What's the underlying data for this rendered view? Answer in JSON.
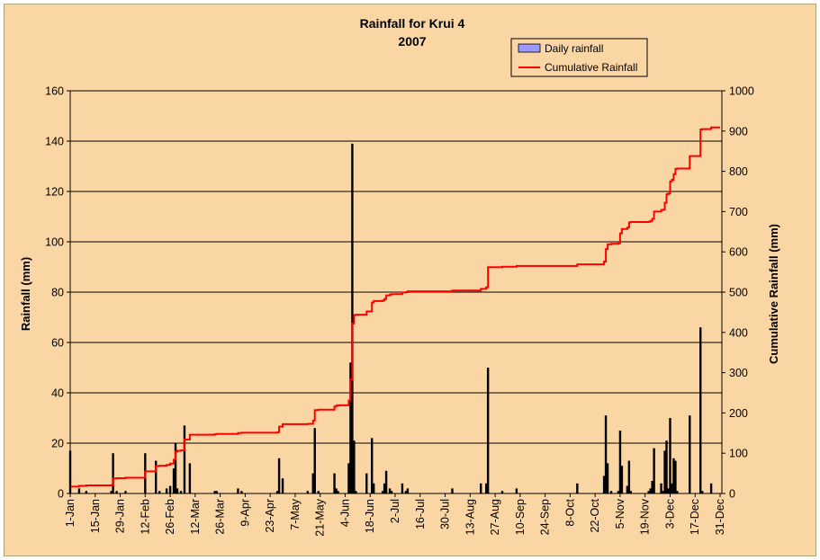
{
  "chart_data": {
    "type": "bar",
    "title": "Rainfall for Krui 4",
    "subtitle": "2007",
    "ylabel": "Rainfall (mm)",
    "y2label": "Cumulative Rainfall (mm)",
    "ylim": [
      0,
      160
    ],
    "y2lim": [
      0,
      1000
    ],
    "yticks": [
      0,
      20,
      40,
      60,
      80,
      100,
      120,
      140,
      160
    ],
    "y2ticks": [
      0,
      100,
      200,
      300,
      400,
      500,
      600,
      700,
      800,
      900,
      1000
    ],
    "xlim_days": [
      0,
      365
    ],
    "xticks": [
      "1-Jan",
      "15-Jan",
      "29-Jan",
      "12-Feb",
      "26-Feb",
      "12-Mar",
      "26-Mar",
      "9-Apr",
      "23-Apr",
      "7-May",
      "21-May",
      "4-Jun",
      "18-Jun",
      "2-Jul",
      "16-Jul",
      "30-Jul",
      "13-Aug",
      "27-Aug",
      "10-Sep",
      "24-Sep",
      "8-Oct",
      "22-Oct",
      "5-Nov",
      "19-Nov",
      "3-Dec",
      "17-Dec",
      "31-Dec"
    ],
    "grid": true,
    "legend_position": "top-right",
    "series": [
      {
        "name": "Daily rainfall",
        "type": "bar",
        "color": "#9999ff",
        "days": [
          "1-Jan",
          "6-Jan",
          "10-Jan",
          "24-Jan",
          "25-Jan",
          "27-Jan",
          "1-Feb",
          "12-Feb",
          "18-Feb",
          "20-Feb",
          "24-Feb",
          "26-Feb",
          "28-Feb",
          "1-Mar",
          "2-Mar",
          "4-Mar",
          "6-Mar",
          "9-Mar",
          "23-Mar",
          "24-Mar",
          "5-Apr",
          "7-Apr",
          "27-Apr",
          "28-Apr",
          "30-Apr",
          "14-May",
          "17-May",
          "18-May",
          "20-May",
          "29-May",
          "30-May",
          "31-May",
          "6-Jun",
          "7-Jun",
          "8-Jun",
          "9-Jun",
          "10-Jun",
          "16-Jun",
          "19-Jun",
          "20-Jun",
          "25-Jun",
          "26-Jun",
          "27-Jun",
          "29-Jun",
          "30-Jun",
          "6-Jul",
          "8-Jul",
          "9-Jul",
          "3-Aug",
          "19-Aug",
          "22-Aug",
          "23-Aug",
          "31-Aug",
          "8-Sep",
          "12-Oct",
          "27-Oct",
          "28-Oct",
          "29-Oct",
          "31-Oct",
          "4-Nov",
          "5-Nov",
          "6-Nov",
          "9-Nov",
          "10-Nov",
          "11-Nov",
          "21-Nov",
          "22-Nov",
          "23-Nov",
          "24-Nov",
          "28-Nov",
          "29-Nov",
          "30-Nov",
          "1-Dec",
          "2-Dec",
          "3-Dec",
          "4-Dec",
          "5-Dec",
          "6-Dec",
          "7-Dec",
          "14-Dec",
          "20-Dec",
          "21-Dec",
          "26-Dec"
        ],
        "values": [
          17,
          2,
          1,
          1,
          16,
          1,
          1,
          16,
          13,
          1,
          2,
          3,
          10,
          20,
          2,
          1,
          27,
          12,
          1,
          1,
          2,
          1,
          1,
          14,
          6,
          1,
          8,
          26,
          1,
          8,
          2,
          1,
          12,
          52,
          139,
          21,
          1,
          8,
          22,
          4,
          1,
          4,
          9,
          2,
          1,
          4,
          1,
          2,
          2,
          4,
          4,
          50,
          1,
          2,
          4,
          7,
          31,
          12,
          1,
          1,
          25,
          11,
          3,
          13,
          1,
          1,
          2,
          5,
          18,
          4,
          1,
          17,
          21,
          2,
          30,
          4,
          14,
          13,
          1,
          31,
          66,
          1,
          4
        ]
      },
      {
        "name": "Cumulative Rainfall",
        "type": "line",
        "color": "#ff0000",
        "days": [
          "1-Jan",
          "6-Jan",
          "10-Jan",
          "24-Jan",
          "25-Jan",
          "27-Jan",
          "1-Feb",
          "12-Feb",
          "18-Feb",
          "20-Feb",
          "24-Feb",
          "26-Feb",
          "28-Feb",
          "1-Mar",
          "2-Mar",
          "4-Mar",
          "6-Mar",
          "9-Mar",
          "23-Mar",
          "24-Mar",
          "5-Apr",
          "7-Apr",
          "27-Apr",
          "28-Apr",
          "30-Apr",
          "14-May",
          "17-May",
          "18-May",
          "20-May",
          "29-May",
          "30-May",
          "31-May",
          "6-Jun",
          "7-Jun",
          "8-Jun",
          "9-Jun",
          "10-Jun",
          "16-Jun",
          "19-Jun",
          "20-Jun",
          "25-Jun",
          "26-Jun",
          "27-Jun",
          "29-Jun",
          "30-Jun",
          "6-Jul",
          "8-Jul",
          "9-Jul",
          "3-Aug",
          "19-Aug",
          "22-Aug",
          "23-Aug",
          "31-Aug",
          "8-Sep",
          "12-Oct",
          "27-Oct",
          "28-Oct",
          "29-Oct",
          "31-Oct",
          "4-Nov",
          "5-Nov",
          "6-Nov",
          "9-Nov",
          "10-Nov",
          "11-Nov",
          "21-Nov",
          "22-Nov",
          "23-Nov",
          "24-Nov",
          "28-Nov",
          "29-Nov",
          "30-Nov",
          "1-Dec",
          "2-Dec",
          "3-Dec",
          "4-Dec",
          "5-Dec",
          "6-Dec",
          "7-Dec",
          "14-Dec",
          "20-Dec",
          "21-Dec",
          "26-Dec",
          "31-Dec"
        ],
        "values": [
          17,
          19,
          20,
          21,
          37,
          38,
          39,
          55,
          68,
          69,
          71,
          74,
          84,
          104,
          106,
          107,
          134,
          146,
          147,
          148,
          150,
          151,
          152,
          166,
          172,
          173,
          181,
          207,
          208,
          216,
          218,
          219,
          231,
          283,
          422,
          443,
          444,
          452,
          474,
          478,
          479,
          483,
          492,
          494,
          495,
          499,
          500,
          502,
          504,
          508,
          512,
          562,
          563,
          565,
          569,
          576,
          607,
          619,
          620,
          621,
          646,
          657,
          660,
          673,
          674,
          675,
          677,
          682,
          700,
          704,
          705,
          722,
          743,
          745,
          775,
          779,
          793,
          806,
          807,
          838,
          904,
          905,
          909,
          909
        ]
      }
    ]
  }
}
